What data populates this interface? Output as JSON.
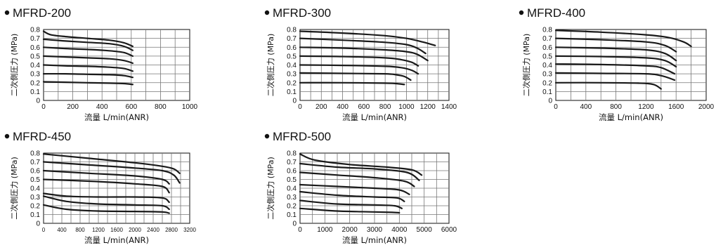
{
  "chart_data": [
    {
      "type": "line",
      "title": "MFRD-200",
      "xlabel": "流量  L/min(ANR)",
      "ylabel": "二次側圧力 (MPa)",
      "xlim": [
        0,
        1000
      ],
      "ylim": [
        0,
        0.8
      ],
      "xticks": [
        "0",
        "200",
        "400",
        "600",
        "800",
        "1000"
      ],
      "yticks": [
        "0",
        "0.1",
        "0.2",
        "0.3",
        "0.4",
        "0.5",
        "0.6",
        "0.7",
        "0.8"
      ],
      "grid": true,
      "series": [
        {
          "x": [
            0,
            50,
            150,
            300,
            450,
            550,
            610
          ],
          "y": [
            0.78,
            0.74,
            0.72,
            0.7,
            0.68,
            0.65,
            0.61
          ]
        },
        {
          "x": [
            0,
            150,
            300,
            450,
            550,
            610
          ],
          "y": [
            0.69,
            0.67,
            0.655,
            0.64,
            0.61,
            0.565
          ]
        },
        {
          "x": [
            0,
            150,
            300,
            450,
            550,
            610
          ],
          "y": [
            0.6,
            0.585,
            0.575,
            0.56,
            0.54,
            0.5
          ]
        },
        {
          "x": [
            0,
            150,
            300,
            450,
            550,
            610
          ],
          "y": [
            0.5,
            0.49,
            0.48,
            0.47,
            0.45,
            0.42
          ]
        },
        {
          "x": [
            0,
            150,
            300,
            450,
            550,
            610
          ],
          "y": [
            0.4,
            0.39,
            0.385,
            0.375,
            0.36,
            0.33
          ]
        },
        {
          "x": [
            0,
            150,
            300,
            450,
            550,
            610
          ],
          "y": [
            0.3,
            0.3,
            0.295,
            0.29,
            0.28,
            0.26
          ]
        },
        {
          "x": [
            0,
            150,
            300,
            450,
            550,
            610
          ],
          "y": [
            0.21,
            0.205,
            0.2,
            0.195,
            0.19,
            0.18
          ]
        }
      ]
    },
    {
      "type": "line",
      "title": "MFRD-300",
      "xlabel": "流量  L/min(ANR)",
      "ylabel": "二次側圧力 (MPa)",
      "xlim": [
        0,
        1400
      ],
      "ylim": [
        0,
        0.8
      ],
      "xticks": [
        "0",
        "200",
        "400",
        "600",
        "800",
        "1000",
        "1200",
        "1400"
      ],
      "yticks": [
        "0",
        "0.1",
        "0.2",
        "0.3",
        "0.4",
        "0.5",
        "0.6",
        "0.7",
        "0.8"
      ],
      "grid": true,
      "series": [
        {
          "x": [
            0,
            400,
            800,
            1000,
            1150,
            1270
          ],
          "y": [
            0.78,
            0.76,
            0.73,
            0.7,
            0.66,
            0.62
          ]
        },
        {
          "x": [
            0,
            400,
            800,
            1000,
            1100,
            1180
          ],
          "y": [
            0.7,
            0.68,
            0.655,
            0.63,
            0.59,
            0.53
          ]
        },
        {
          "x": [
            0,
            400,
            800,
            1000,
            1100,
            1200
          ],
          "y": [
            0.6,
            0.59,
            0.57,
            0.55,
            0.52,
            0.45
          ]
        },
        {
          "x": [
            0,
            400,
            800,
            950,
            1050,
            1110
          ],
          "y": [
            0.5,
            0.495,
            0.48,
            0.46,
            0.43,
            0.39
          ]
        },
        {
          "x": [
            0,
            400,
            800,
            950,
            1050,
            1110
          ],
          "y": [
            0.4,
            0.395,
            0.385,
            0.37,
            0.34,
            0.3
          ]
        },
        {
          "x": [
            0,
            400,
            800,
            900,
            980,
            1040
          ],
          "y": [
            0.31,
            0.305,
            0.3,
            0.29,
            0.27,
            0.23
          ]
        },
        {
          "x": [
            0,
            400,
            800,
            900,
            980
          ],
          "y": [
            0.2,
            0.2,
            0.195,
            0.19,
            0.18
          ]
        }
      ]
    },
    {
      "type": "line",
      "title": "MFRD-400",
      "xlabel": "流量  L/min(ANR)",
      "ylabel": "二次側圧力 (MPa)",
      "xlim": [
        0,
        2000
      ],
      "ylim": [
        0,
        0.8
      ],
      "xticks": [
        "0",
        "400",
        "800",
        "1200",
        "1600",
        "2000"
      ],
      "yticks": [
        "0",
        "0.1",
        "0.2",
        "0.3",
        "0.4",
        "0.5",
        "0.6",
        "0.7",
        "0.8"
      ],
      "grid": true,
      "series": [
        {
          "x": [
            0,
            600,
            1200,
            1500,
            1700,
            1800
          ],
          "y": [
            0.79,
            0.77,
            0.74,
            0.71,
            0.66,
            0.61
          ]
        },
        {
          "x": [
            0,
            600,
            1200,
            1450,
            1600
          ],
          "y": [
            0.7,
            0.685,
            0.66,
            0.62,
            0.55
          ]
        },
        {
          "x": [
            0,
            600,
            1200,
            1450,
            1600
          ],
          "y": [
            0.6,
            0.59,
            0.57,
            0.53,
            0.45
          ]
        },
        {
          "x": [
            0,
            600,
            1200,
            1450,
            1600
          ],
          "y": [
            0.5,
            0.495,
            0.48,
            0.45,
            0.38
          ]
        },
        {
          "x": [
            0,
            600,
            1200,
            1400,
            1580
          ],
          "y": [
            0.41,
            0.405,
            0.39,
            0.37,
            0.3
          ]
        },
        {
          "x": [
            0,
            600,
            1200,
            1400,
            1580
          ],
          "y": [
            0.31,
            0.305,
            0.3,
            0.28,
            0.23
          ]
        },
        {
          "x": [
            0,
            600,
            1100,
            1300,
            1400
          ],
          "y": [
            0.2,
            0.2,
            0.195,
            0.18,
            0.13
          ]
        }
      ]
    },
    {
      "type": "line",
      "title": "MFRD-450",
      "xlabel": "流量  L/min(ANR)",
      "ylabel": "二次側圧力 (MPa)",
      "xlim": [
        0,
        3200
      ],
      "ylim": [
        0,
        0.8
      ],
      "xticks": [
        "0",
        "400",
        "800",
        "1200",
        "1600",
        "2000",
        "2400",
        "2800",
        "3200"
      ],
      "yticks": [
        "0",
        "0.1",
        "0.2",
        "0.3",
        "0.4",
        "0.5",
        "0.6",
        "0.7",
        "0.8"
      ],
      "grid": true,
      "series": [
        {
          "x": [
            0,
            1000,
            2000,
            2600,
            2850,
            2980
          ],
          "y": [
            0.79,
            0.74,
            0.69,
            0.65,
            0.62,
            0.57
          ]
        },
        {
          "x": [
            0,
            1000,
            2000,
            2600,
            2850,
            2980
          ],
          "y": [
            0.7,
            0.665,
            0.63,
            0.6,
            0.55,
            0.46
          ]
        },
        {
          "x": [
            0,
            1000,
            2000,
            2600,
            2750
          ],
          "y": [
            0.6,
            0.57,
            0.54,
            0.5,
            0.45
          ]
        },
        {
          "x": [
            0,
            1000,
            2000,
            2600,
            2750
          ],
          "y": [
            0.5,
            0.48,
            0.45,
            0.42,
            0.35
          ]
        },
        {
          "x": [
            0,
            500,
            1200,
            2000,
            2600,
            2750
          ],
          "y": [
            0.34,
            0.31,
            0.3,
            0.3,
            0.29,
            0.24
          ]
        },
        {
          "x": [
            0,
            500,
            1200,
            2000,
            2600,
            2750
          ],
          "y": [
            0.31,
            0.25,
            0.22,
            0.21,
            0.2,
            0.16
          ]
        },
        {
          "x": [
            0,
            500,
            1200,
            2000,
            2600,
            2750
          ],
          "y": [
            0.21,
            0.16,
            0.14,
            0.135,
            0.13,
            0.115
          ]
        }
      ]
    },
    {
      "type": "line",
      "title": "MFRD-500",
      "xlabel": "流量  L/min(ANR)",
      "ylabel": "二次側圧力 (MPa)",
      "xlim": [
        0,
        6000
      ],
      "ylim": [
        0,
        0.8
      ],
      "xticks": [
        "0",
        "1000",
        "2000",
        "3000",
        "4000",
        "5000",
        "6000"
      ],
      "yticks": [
        "0",
        "0.1",
        "0.2",
        "0.3",
        "0.4",
        "0.5",
        "0.6",
        "0.7",
        "0.8"
      ],
      "grid": true,
      "series": [
        {
          "x": [
            0,
            600,
            2000,
            3500,
            4500,
            4900
          ],
          "y": [
            0.79,
            0.72,
            0.67,
            0.64,
            0.61,
            0.55
          ]
        },
        {
          "x": [
            0,
            1500,
            3000,
            4300,
            4800
          ],
          "y": [
            0.68,
            0.64,
            0.62,
            0.58,
            0.49
          ]
        },
        {
          "x": [
            0,
            1500,
            3000,
            4200,
            4600
          ],
          "y": [
            0.58,
            0.55,
            0.52,
            0.48,
            0.42
          ]
        },
        {
          "x": [
            0,
            1500,
            3000,
            4000,
            4400
          ],
          "y": [
            0.44,
            0.42,
            0.4,
            0.38,
            0.33
          ]
        },
        {
          "x": [
            0,
            1500,
            3000,
            3900,
            4200
          ],
          "y": [
            0.36,
            0.32,
            0.3,
            0.29,
            0.25
          ]
        },
        {
          "x": [
            0,
            1500,
            3000,
            3800,
            4100
          ],
          "y": [
            0.26,
            0.22,
            0.21,
            0.2,
            0.17
          ]
        },
        {
          "x": [
            0,
            1500,
            3000,
            3700,
            4000
          ],
          "y": [
            0.17,
            0.14,
            0.13,
            0.125,
            0.12
          ]
        }
      ]
    }
  ]
}
